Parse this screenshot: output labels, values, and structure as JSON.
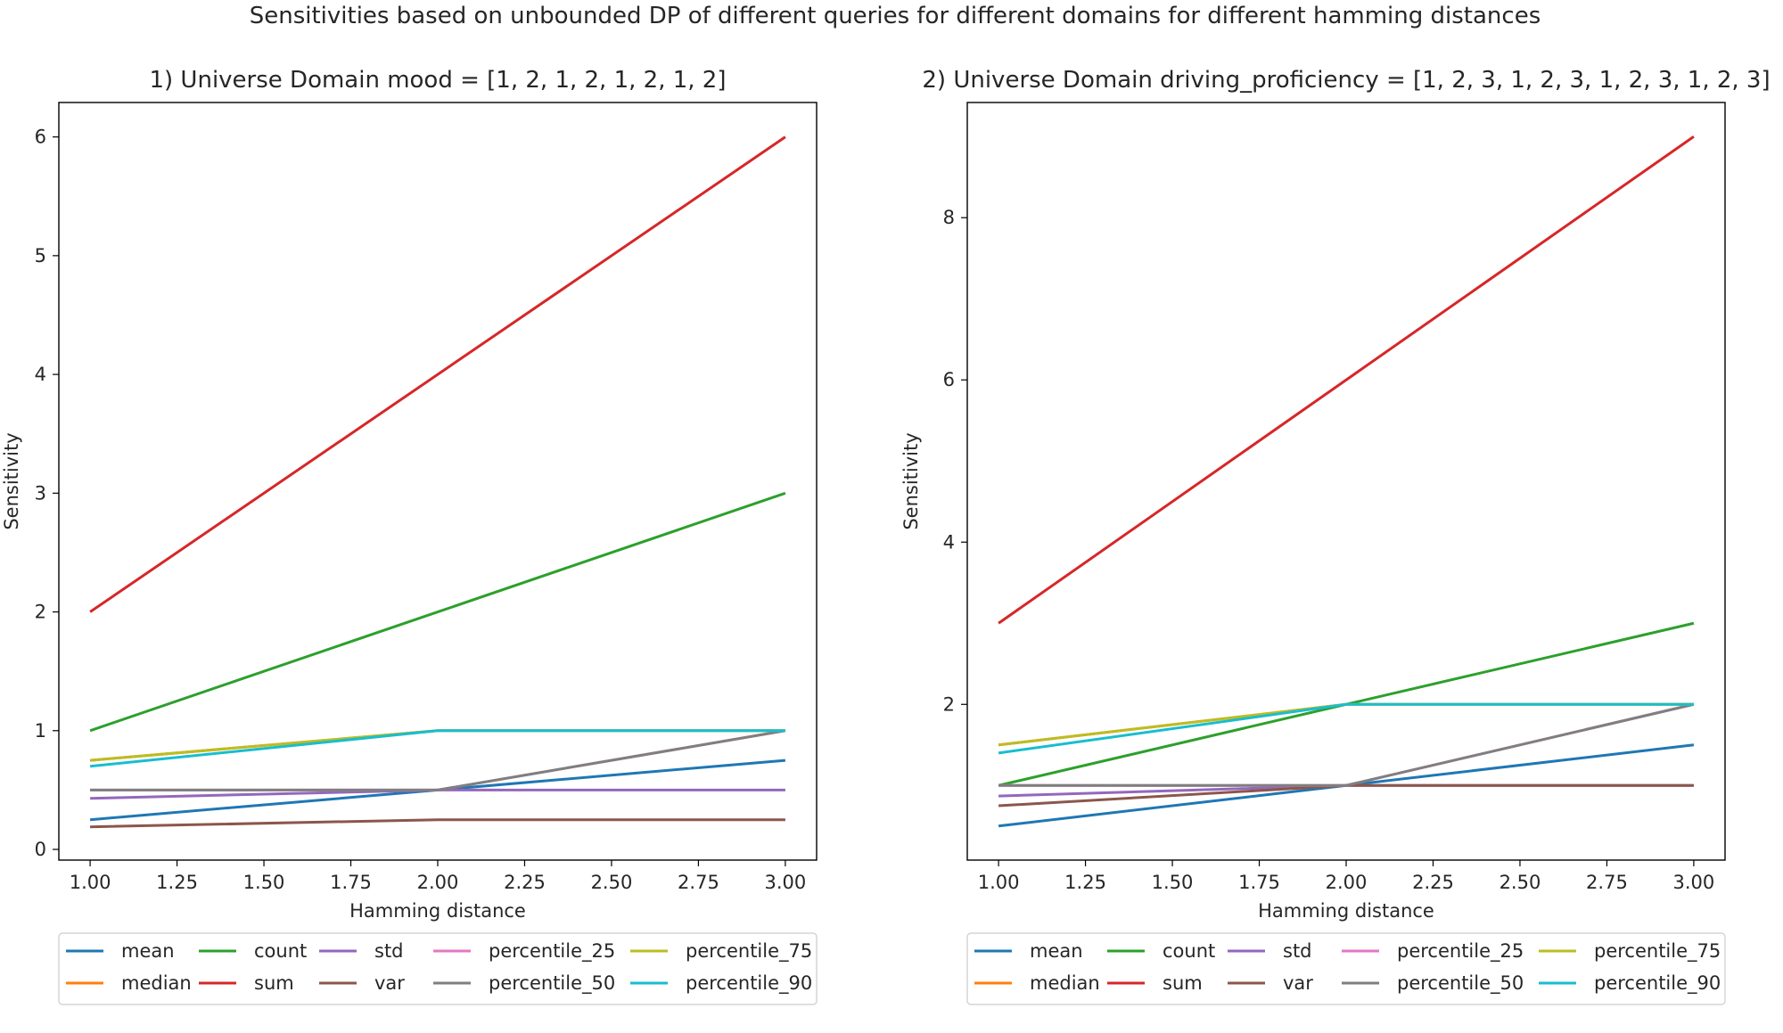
{
  "figure": {
    "suptitle": "Sensitivities based on unbounded DP of different queries for different domains for different hamming distances"
  },
  "chart_data": [
    {
      "type": "line",
      "title": "1) Universe Domain mood = [1, 2, 1, 2, 1, 2, 1, 2]",
      "xlabel": "Hamming distance",
      "ylabel": "Sensitivity",
      "xlim": [
        0.91,
        3.09
      ],
      "ylim": [
        -0.09,
        6.29
      ],
      "xticks": [
        "1.00",
        "1.25",
        "1.50",
        "1.75",
        "2.00",
        "2.25",
        "2.50",
        "2.75",
        "3.00"
      ],
      "yticks": [
        "0",
        "1",
        "2",
        "3",
        "4",
        "5",
        "6"
      ],
      "x": [
        1,
        2,
        3
      ],
      "series": [
        {
          "name": "mean",
          "color": "#1f77b4",
          "values": [
            0.25,
            0.5,
            0.75
          ]
        },
        {
          "name": "median",
          "color": "#ff7f0e",
          "values": [
            0.75,
            1.0,
            1.0
          ]
        },
        {
          "name": "count",
          "color": "#2ca02c",
          "values": [
            1,
            2,
            3
          ]
        },
        {
          "name": "sum",
          "color": "#d62728",
          "values": [
            2,
            4,
            6
          ]
        },
        {
          "name": "std",
          "color": "#9467bd",
          "values": [
            0.43,
            0.5,
            0.5
          ]
        },
        {
          "name": "var",
          "color": "#8c564b",
          "values": [
            0.19,
            0.25,
            0.25
          ]
        },
        {
          "name": "percentile_25",
          "color": "#e377c2",
          "values": [
            0.5,
            0.5,
            1.0
          ]
        },
        {
          "name": "percentile_50",
          "color": "#7f7f7f",
          "values": [
            0.5,
            0.5,
            1.0
          ]
        },
        {
          "name": "percentile_75",
          "color": "#bcbd22",
          "values": [
            0.75,
            1.0,
            1.0
          ]
        },
        {
          "name": "percentile_90",
          "color": "#17becf",
          "values": [
            0.7,
            1.0,
            1.0
          ]
        }
      ],
      "legend": {
        "placement": "below",
        "ncol": 5
      }
    },
    {
      "type": "line",
      "title": "2) Universe Domain driving_proficiency = [1, 2, 3, 1, 2, 3, 1, 2, 3, 1, 2, 3]",
      "xlabel": "Hamming distance",
      "ylabel": "Sensitivity",
      "xlim": [
        0.91,
        3.09
      ],
      "ylim": [
        0.08,
        9.42
      ],
      "xticks": [
        "1.00",
        "1.25",
        "1.50",
        "1.75",
        "2.00",
        "2.25",
        "2.50",
        "2.75",
        "3.00"
      ],
      "yticks": [
        "2",
        "4",
        "6",
        "8"
      ],
      "x": [
        1,
        2,
        3
      ],
      "series": [
        {
          "name": "mean",
          "color": "#1f77b4",
          "values": [
            0.5,
            1.0,
            1.5
          ]
        },
        {
          "name": "median",
          "color": "#ff7f0e",
          "values": [
            1.5,
            2.0,
            2.0
          ]
        },
        {
          "name": "count",
          "color": "#2ca02c",
          "values": [
            1,
            2,
            3
          ]
        },
        {
          "name": "sum",
          "color": "#d62728",
          "values": [
            3,
            6,
            9
          ]
        },
        {
          "name": "std",
          "color": "#9467bd",
          "values": [
            0.87,
            1.0,
            1.0
          ]
        },
        {
          "name": "var",
          "color": "#8c564b",
          "values": [
            0.75,
            1.0,
            1.0
          ]
        },
        {
          "name": "percentile_25",
          "color": "#e377c2",
          "values": [
            1.0,
            1.0,
            2.0
          ]
        },
        {
          "name": "percentile_50",
          "color": "#7f7f7f",
          "values": [
            1.0,
            1.0,
            2.0
          ]
        },
        {
          "name": "percentile_75",
          "color": "#bcbd22",
          "values": [
            1.5,
            2.0,
            2.0
          ]
        },
        {
          "name": "percentile_90",
          "color": "#17becf",
          "values": [
            1.4,
            2.0,
            2.0
          ]
        }
      ],
      "legend": {
        "placement": "below",
        "ncol": 5
      }
    }
  ]
}
